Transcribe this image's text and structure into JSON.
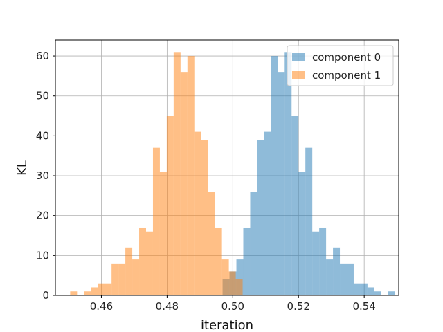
{
  "chart_data": {
    "type": "histogram",
    "xlabel": "iteration",
    "ylabel": "KL",
    "xlim": [
      0.446,
      0.5505
    ],
    "ylim": [
      0,
      64
    ],
    "xticks": [
      0.46,
      0.48,
      0.5,
      0.52,
      0.54
    ],
    "xtick_labels": [
      "0.46",
      "0.48",
      "0.50",
      "0.52",
      "0.54"
    ],
    "yticks": [
      0,
      10,
      20,
      30,
      40,
      50,
      60
    ],
    "ytick_labels": [
      "0",
      "10",
      "20",
      "30",
      "40",
      "50",
      "60"
    ],
    "grid": true,
    "legend_position": "top-right",
    "bin_width": 0.0021,
    "series": [
      {
        "name": "component 0",
        "color": "#1f77b4",
        "opacity": 0.5,
        "bins": [
          {
            "x0": 0.4969,
            "count": 4
          },
          {
            "x0": 0.499,
            "count": 6
          },
          {
            "x0": 0.5011,
            "count": 9
          },
          {
            "x0": 0.5032,
            "count": 17
          },
          {
            "x0": 0.5053,
            "count": 26
          },
          {
            "x0": 0.5074,
            "count": 39
          },
          {
            "x0": 0.5095,
            "count": 41
          },
          {
            "x0": 0.5116,
            "count": 60
          },
          {
            "x0": 0.5137,
            "count": 56
          },
          {
            "x0": 0.5158,
            "count": 61
          },
          {
            "x0": 0.5179,
            "count": 45
          },
          {
            "x0": 0.52,
            "count": 31
          },
          {
            "x0": 0.5221,
            "count": 37
          },
          {
            "x0": 0.5242,
            "count": 16
          },
          {
            "x0": 0.5263,
            "count": 17
          },
          {
            "x0": 0.5284,
            "count": 9
          },
          {
            "x0": 0.5305,
            "count": 12
          },
          {
            "x0": 0.5326,
            "count": 8
          },
          {
            "x0": 0.5347,
            "count": 8
          },
          {
            "x0": 0.5368,
            "count": 3
          },
          {
            "x0": 0.5389,
            "count": 3
          },
          {
            "x0": 0.541,
            "count": 2
          },
          {
            "x0": 0.5431,
            "count": 1
          },
          {
            "x0": 0.5473,
            "count": 1
          }
        ]
      },
      {
        "name": "component 1",
        "color": "#ff7f0e",
        "opacity": 0.5,
        "bins": [
          {
            "x0": 0.4505,
            "count": 1
          },
          {
            "x0": 0.4547,
            "count": 1
          },
          {
            "x0": 0.4568,
            "count": 2
          },
          {
            "x0": 0.4589,
            "count": 3
          },
          {
            "x0": 0.461,
            "count": 3
          },
          {
            "x0": 0.4631,
            "count": 8
          },
          {
            "x0": 0.4652,
            "count": 8
          },
          {
            "x0": 0.4673,
            "count": 12
          },
          {
            "x0": 0.4694,
            "count": 9
          },
          {
            "x0": 0.4715,
            "count": 17
          },
          {
            "x0": 0.4736,
            "count": 16
          },
          {
            "x0": 0.4757,
            "count": 37
          },
          {
            "x0": 0.4778,
            "count": 31
          },
          {
            "x0": 0.4799,
            "count": 45
          },
          {
            "x0": 0.482,
            "count": 61
          },
          {
            "x0": 0.4841,
            "count": 56
          },
          {
            "x0": 0.4862,
            "count": 60
          },
          {
            "x0": 0.4883,
            "count": 41
          },
          {
            "x0": 0.4904,
            "count": 39
          },
          {
            "x0": 0.4925,
            "count": 26
          },
          {
            "x0": 0.4946,
            "count": 17
          },
          {
            "x0": 0.4967,
            "count": 9
          },
          {
            "x0": 0.4988,
            "count": 6
          },
          {
            "x0": 0.5009,
            "count": 4
          }
        ]
      }
    ]
  }
}
